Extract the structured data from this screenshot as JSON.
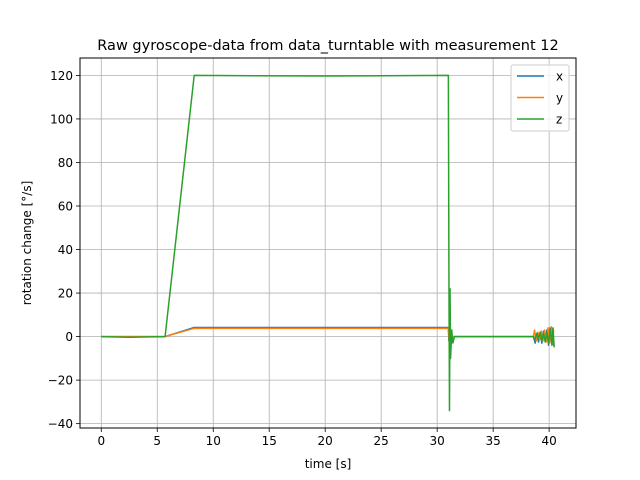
{
  "chart_data": {
    "type": "line",
    "title": "Raw gyroscope-data from data_turntable with measurement 12",
    "xlabel": "time [s]",
    "ylabel": "rotation change [°/s]",
    "xlim": [
      -1.9,
      42.4
    ],
    "ylim": [
      -42,
      128
    ],
    "xticks": [
      0,
      5,
      10,
      15,
      20,
      25,
      30,
      35,
      40
    ],
    "yticks": [
      -40,
      -20,
      0,
      20,
      40,
      60,
      80,
      100,
      120
    ],
    "grid": true,
    "legend_position": "top-right",
    "series": [
      {
        "name": "x",
        "color": "#1f77b4",
        "points": [
          [
            0,
            0
          ],
          [
            5.7,
            0
          ],
          [
            8.3,
            4.2
          ],
          [
            31.0,
            4.2
          ],
          [
            31.05,
            -2
          ],
          [
            31.15,
            1.5
          ],
          [
            31.3,
            0
          ],
          [
            38.6,
            0
          ],
          [
            38.75,
            -3
          ],
          [
            38.9,
            1.5
          ],
          [
            39.05,
            -2.5
          ],
          [
            39.2,
            2
          ],
          [
            39.35,
            -3
          ],
          [
            39.5,
            2.5
          ],
          [
            39.65,
            -2
          ],
          [
            39.8,
            3
          ],
          [
            39.95,
            -4
          ],
          [
            40.1,
            4
          ],
          [
            40.2,
            -2
          ],
          [
            40.3,
            3.5
          ],
          [
            40.4,
            -4
          ]
        ]
      },
      {
        "name": "y",
        "color": "#ff7f0e",
        "points": [
          [
            0,
            0
          ],
          [
            5.7,
            0
          ],
          [
            8.3,
            3.8
          ],
          [
            31.0,
            3.8
          ],
          [
            31.05,
            -1
          ],
          [
            31.2,
            0.5
          ],
          [
            31.3,
            0
          ],
          [
            38.6,
            0
          ],
          [
            38.7,
            3
          ],
          [
            38.85,
            -2
          ],
          [
            39.0,
            2
          ],
          [
            39.15,
            -1.5
          ],
          [
            39.3,
            2.5
          ],
          [
            39.45,
            -2
          ],
          [
            39.6,
            3
          ],
          [
            39.75,
            -2.5
          ],
          [
            39.9,
            4
          ],
          [
            40.05,
            -3
          ],
          [
            40.2,
            4.5
          ],
          [
            40.3,
            -3
          ],
          [
            40.4,
            3
          ]
        ]
      },
      {
        "name": "z",
        "color": "#2ca02c",
        "points": [
          [
            0,
            0
          ],
          [
            2.5,
            -0.3
          ],
          [
            5.7,
            0
          ],
          [
            8.3,
            120
          ],
          [
            20,
            119.7
          ],
          [
            31.0,
            120
          ],
          [
            31.05,
            30
          ],
          [
            31.1,
            -34
          ],
          [
            31.15,
            22
          ],
          [
            31.2,
            -10
          ],
          [
            31.3,
            3
          ],
          [
            31.4,
            -3
          ],
          [
            31.55,
            0
          ],
          [
            38.6,
            0
          ],
          [
            38.75,
            -1.5
          ],
          [
            38.9,
            1.5
          ],
          [
            39.05,
            -1
          ],
          [
            39.2,
            2
          ],
          [
            39.35,
            -2
          ],
          [
            39.5,
            1.5
          ],
          [
            39.65,
            -2.5
          ],
          [
            39.8,
            2
          ],
          [
            39.95,
            -3
          ],
          [
            40.1,
            3.5
          ],
          [
            40.25,
            -4
          ],
          [
            40.35,
            4
          ],
          [
            40.45,
            -5
          ]
        ]
      }
    ]
  }
}
